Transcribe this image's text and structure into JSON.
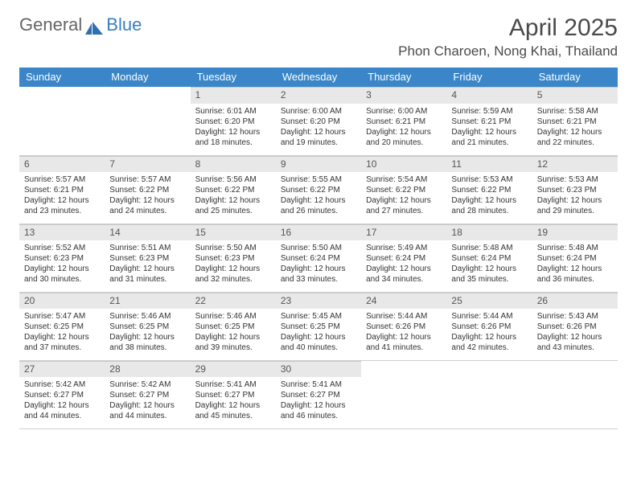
{
  "brand": {
    "part1": "General",
    "part2": "Blue"
  },
  "title": "April 2025",
  "location": "Phon Charoen, Nong Khai, Thailand",
  "colors": {
    "header_bg": "#3a86c8",
    "header_text": "#ffffff",
    "daynum_bg": "#e8e8e8",
    "border": "#d0d0d0",
    "brand_gray": "#666666",
    "brand_blue": "#3a7fbf"
  },
  "weekdays": [
    "Sunday",
    "Monday",
    "Tuesday",
    "Wednesday",
    "Thursday",
    "Friday",
    "Saturday"
  ],
  "grid": [
    [
      null,
      null,
      {
        "n": "1",
        "sr": "Sunrise: 6:01 AM",
        "ss": "Sunset: 6:20 PM",
        "dl": "Daylight: 12 hours and 18 minutes."
      },
      {
        "n": "2",
        "sr": "Sunrise: 6:00 AM",
        "ss": "Sunset: 6:20 PM",
        "dl": "Daylight: 12 hours and 19 minutes."
      },
      {
        "n": "3",
        "sr": "Sunrise: 6:00 AM",
        "ss": "Sunset: 6:21 PM",
        "dl": "Daylight: 12 hours and 20 minutes."
      },
      {
        "n": "4",
        "sr": "Sunrise: 5:59 AM",
        "ss": "Sunset: 6:21 PM",
        "dl": "Daylight: 12 hours and 21 minutes."
      },
      {
        "n": "5",
        "sr": "Sunrise: 5:58 AM",
        "ss": "Sunset: 6:21 PM",
        "dl": "Daylight: 12 hours and 22 minutes."
      }
    ],
    [
      {
        "n": "6",
        "sr": "Sunrise: 5:57 AM",
        "ss": "Sunset: 6:21 PM",
        "dl": "Daylight: 12 hours and 23 minutes."
      },
      {
        "n": "7",
        "sr": "Sunrise: 5:57 AM",
        "ss": "Sunset: 6:22 PM",
        "dl": "Daylight: 12 hours and 24 minutes."
      },
      {
        "n": "8",
        "sr": "Sunrise: 5:56 AM",
        "ss": "Sunset: 6:22 PM",
        "dl": "Daylight: 12 hours and 25 minutes."
      },
      {
        "n": "9",
        "sr": "Sunrise: 5:55 AM",
        "ss": "Sunset: 6:22 PM",
        "dl": "Daylight: 12 hours and 26 minutes."
      },
      {
        "n": "10",
        "sr": "Sunrise: 5:54 AM",
        "ss": "Sunset: 6:22 PM",
        "dl": "Daylight: 12 hours and 27 minutes."
      },
      {
        "n": "11",
        "sr": "Sunrise: 5:53 AM",
        "ss": "Sunset: 6:22 PM",
        "dl": "Daylight: 12 hours and 28 minutes."
      },
      {
        "n": "12",
        "sr": "Sunrise: 5:53 AM",
        "ss": "Sunset: 6:23 PM",
        "dl": "Daylight: 12 hours and 29 minutes."
      }
    ],
    [
      {
        "n": "13",
        "sr": "Sunrise: 5:52 AM",
        "ss": "Sunset: 6:23 PM",
        "dl": "Daylight: 12 hours and 30 minutes."
      },
      {
        "n": "14",
        "sr": "Sunrise: 5:51 AM",
        "ss": "Sunset: 6:23 PM",
        "dl": "Daylight: 12 hours and 31 minutes."
      },
      {
        "n": "15",
        "sr": "Sunrise: 5:50 AM",
        "ss": "Sunset: 6:23 PM",
        "dl": "Daylight: 12 hours and 32 minutes."
      },
      {
        "n": "16",
        "sr": "Sunrise: 5:50 AM",
        "ss": "Sunset: 6:24 PM",
        "dl": "Daylight: 12 hours and 33 minutes."
      },
      {
        "n": "17",
        "sr": "Sunrise: 5:49 AM",
        "ss": "Sunset: 6:24 PM",
        "dl": "Daylight: 12 hours and 34 minutes."
      },
      {
        "n": "18",
        "sr": "Sunrise: 5:48 AM",
        "ss": "Sunset: 6:24 PM",
        "dl": "Daylight: 12 hours and 35 minutes."
      },
      {
        "n": "19",
        "sr": "Sunrise: 5:48 AM",
        "ss": "Sunset: 6:24 PM",
        "dl": "Daylight: 12 hours and 36 minutes."
      }
    ],
    [
      {
        "n": "20",
        "sr": "Sunrise: 5:47 AM",
        "ss": "Sunset: 6:25 PM",
        "dl": "Daylight: 12 hours and 37 minutes."
      },
      {
        "n": "21",
        "sr": "Sunrise: 5:46 AM",
        "ss": "Sunset: 6:25 PM",
        "dl": "Daylight: 12 hours and 38 minutes."
      },
      {
        "n": "22",
        "sr": "Sunrise: 5:46 AM",
        "ss": "Sunset: 6:25 PM",
        "dl": "Daylight: 12 hours and 39 minutes."
      },
      {
        "n": "23",
        "sr": "Sunrise: 5:45 AM",
        "ss": "Sunset: 6:25 PM",
        "dl": "Daylight: 12 hours and 40 minutes."
      },
      {
        "n": "24",
        "sr": "Sunrise: 5:44 AM",
        "ss": "Sunset: 6:26 PM",
        "dl": "Daylight: 12 hours and 41 minutes."
      },
      {
        "n": "25",
        "sr": "Sunrise: 5:44 AM",
        "ss": "Sunset: 6:26 PM",
        "dl": "Daylight: 12 hours and 42 minutes."
      },
      {
        "n": "26",
        "sr": "Sunrise: 5:43 AM",
        "ss": "Sunset: 6:26 PM",
        "dl": "Daylight: 12 hours and 43 minutes."
      }
    ],
    [
      {
        "n": "27",
        "sr": "Sunrise: 5:42 AM",
        "ss": "Sunset: 6:27 PM",
        "dl": "Daylight: 12 hours and 44 minutes."
      },
      {
        "n": "28",
        "sr": "Sunrise: 5:42 AM",
        "ss": "Sunset: 6:27 PM",
        "dl": "Daylight: 12 hours and 44 minutes."
      },
      {
        "n": "29",
        "sr": "Sunrise: 5:41 AM",
        "ss": "Sunset: 6:27 PM",
        "dl": "Daylight: 12 hours and 45 minutes."
      },
      {
        "n": "30",
        "sr": "Sunrise: 5:41 AM",
        "ss": "Sunset: 6:27 PM",
        "dl": "Daylight: 12 hours and 46 minutes."
      },
      null,
      null,
      null
    ]
  ]
}
